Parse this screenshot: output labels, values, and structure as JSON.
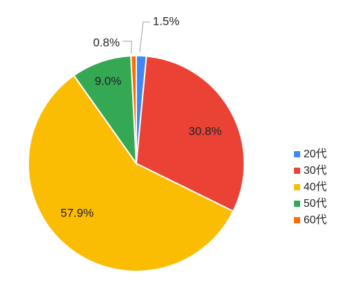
{
  "chart_data": {
    "type": "pie",
    "title": "",
    "legend_position": "right",
    "categories": [
      "20代",
      "30代",
      "40代",
      "50代",
      "60代"
    ],
    "values": [
      1.5,
      30.8,
      57.9,
      9.0,
      0.8
    ],
    "labels": [
      "1.5%",
      "30.8%",
      "57.9%",
      "9.0%",
      "0.8%"
    ],
    "colors": [
      "#4285F4",
      "#EA4335",
      "#FBBC04",
      "#34A853",
      "#FF6D01"
    ],
    "grid": false
  }
}
